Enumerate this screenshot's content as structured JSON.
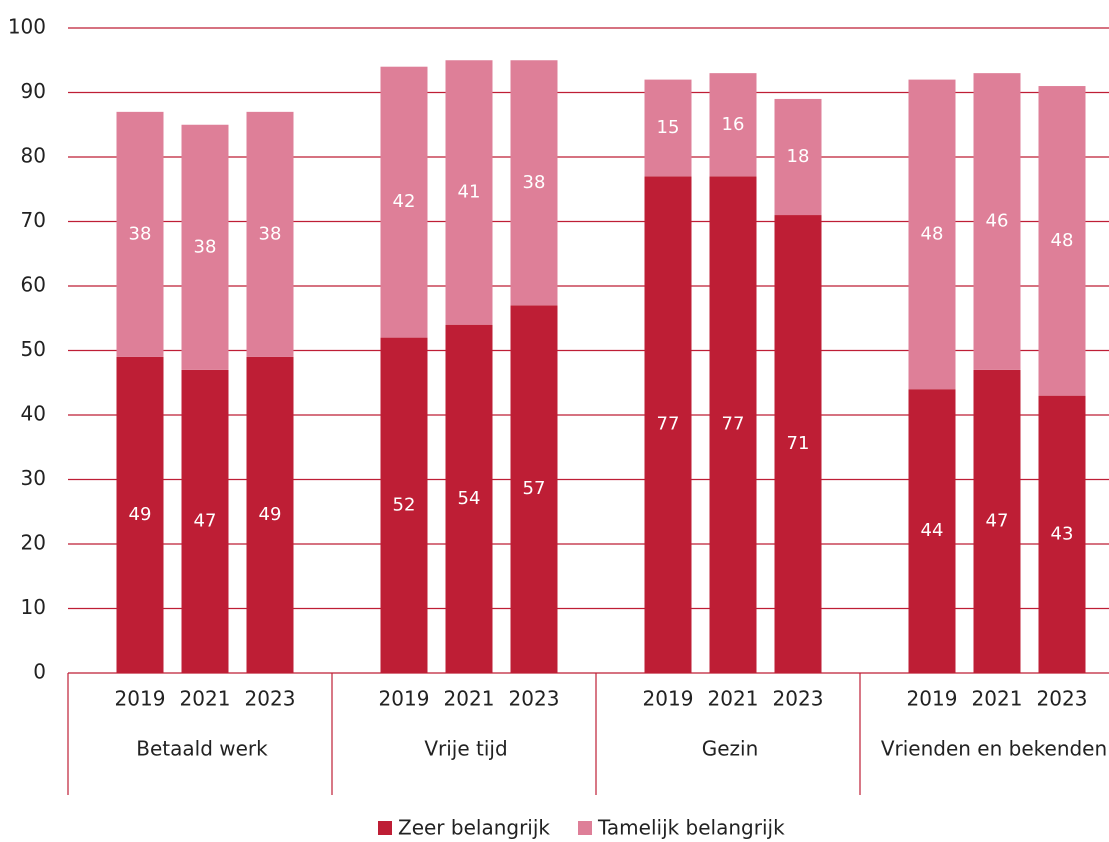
{
  "chart_data": {
    "type": "stacked-bar",
    "groups": [
      "Betaald werk",
      "Vrije tijd",
      "Gezin",
      "Vrienden en bekenden"
    ],
    "categories": [
      "2019",
      "2021",
      "2023",
      "2019",
      "2021",
      "2023",
      "2019",
      "2021",
      "2023",
      "2019",
      "2021",
      "2023"
    ],
    "series": [
      {
        "name": "Zeer belangrijk",
        "color": "#be1e35",
        "values": [
          49,
          47,
          49,
          52,
          54,
          57,
          77,
          77,
          71,
          44,
          47,
          43
        ]
      },
      {
        "name": "Tamelijk belangrijk",
        "color": "#de7f98",
        "values": [
          38,
          38,
          38,
          42,
          41,
          38,
          15,
          16,
          18,
          48,
          46,
          48
        ]
      }
    ],
    "ylim": [
      0,
      100
    ],
    "yticks": [
      0,
      10,
      20,
      30,
      40,
      50,
      60,
      70,
      80,
      90,
      100
    ],
    "grid": true,
    "grid_color": "#be1e35",
    "legend": "bottom"
  }
}
